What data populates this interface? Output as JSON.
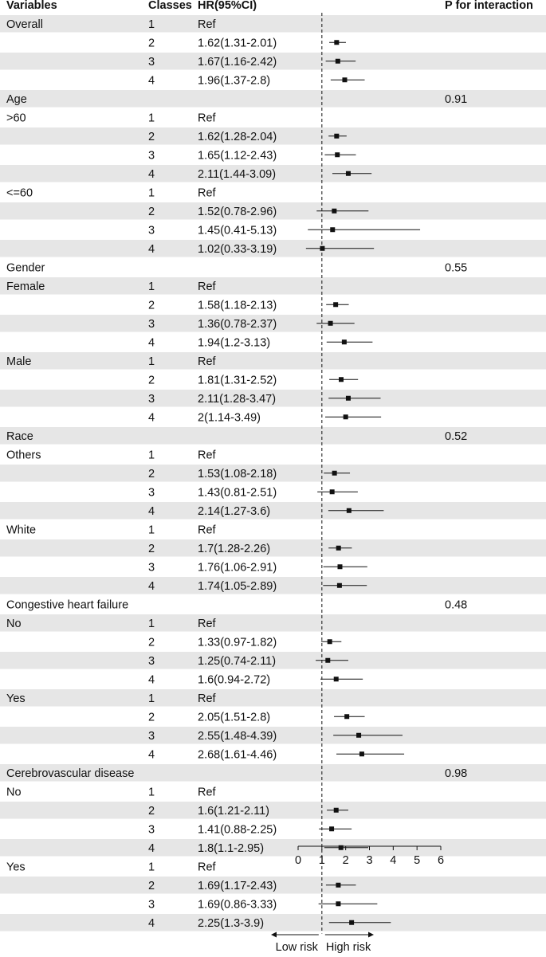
{
  "headers": {
    "variables": "Variables",
    "classes": "Classes",
    "hr": "HR(95%CI)",
    "p": "P for interaction"
  },
  "axis": {
    "ticks": [
      0,
      1,
      2,
      3,
      4,
      5,
      6
    ],
    "xlim": [
      0,
      6
    ],
    "reference": 1,
    "low_label": "Low risk",
    "high_label": "High risk"
  },
  "colors": {
    "band": "#e6e6e6",
    "ink": "#111111"
  },
  "chart_data": {
    "type": "forest",
    "rows": [
      {
        "variable": "Overall",
        "class": "1",
        "hr_text": "Ref",
        "p": "",
        "band": true
      },
      {
        "variable": "",
        "class": "2",
        "hr_text": "1.62(1.31-2.01)",
        "p": "",
        "band": false,
        "hr": 1.62,
        "lo": 1.31,
        "hi": 2.01
      },
      {
        "variable": "",
        "class": "3",
        "hr_text": "1.67(1.16-2.42)",
        "p": "",
        "band": true,
        "hr": 1.67,
        "lo": 1.16,
        "hi": 2.42
      },
      {
        "variable": "",
        "class": "4",
        "hr_text": "1.96(1.37-2.8)",
        "p": "",
        "band": false,
        "hr": 1.96,
        "lo": 1.37,
        "hi": 2.8
      },
      {
        "variable": "Age",
        "class": "",
        "hr_text": "",
        "p": "0.91",
        "band": true
      },
      {
        "variable": ">60",
        "class": "1",
        "hr_text": "Ref",
        "p": "",
        "band": false
      },
      {
        "variable": "",
        "class": "2",
        "hr_text": "1.62(1.28-2.04)",
        "p": "",
        "band": true,
        "hr": 1.62,
        "lo": 1.28,
        "hi": 2.04
      },
      {
        "variable": "",
        "class": "3",
        "hr_text": "1.65(1.12-2.43)",
        "p": "",
        "band": false,
        "hr": 1.65,
        "lo": 1.12,
        "hi": 2.43
      },
      {
        "variable": "",
        "class": "4",
        "hr_text": "2.11(1.44-3.09)",
        "p": "",
        "band": true,
        "hr": 2.11,
        "lo": 1.44,
        "hi": 3.09
      },
      {
        "variable": "<=60",
        "class": "1",
        "hr_text": "Ref",
        "p": "",
        "band": false
      },
      {
        "variable": "",
        "class": "2",
        "hr_text": "1.52(0.78-2.96)",
        "p": "",
        "band": true,
        "hr": 1.52,
        "lo": 0.78,
        "hi": 2.96
      },
      {
        "variable": "",
        "class": "3",
        "hr_text": "1.45(0.41-5.13)",
        "p": "",
        "band": false,
        "hr": 1.45,
        "lo": 0.41,
        "hi": 5.13
      },
      {
        "variable": "",
        "class": "4",
        "hr_text": "1.02(0.33-3.19)",
        "p": "",
        "band": true,
        "hr": 1.02,
        "lo": 0.33,
        "hi": 3.19
      },
      {
        "variable": "Gender",
        "class": "",
        "hr_text": "",
        "p": "0.55",
        "band": false
      },
      {
        "variable": "Female",
        "class": "1",
        "hr_text": "Ref",
        "p": "",
        "band": true
      },
      {
        "variable": "",
        "class": "2",
        "hr_text": "1.58(1.18-2.13)",
        "p": "",
        "band": false,
        "hr": 1.58,
        "lo": 1.18,
        "hi": 2.13
      },
      {
        "variable": "",
        "class": "3",
        "hr_text": "1.36(0.78-2.37)",
        "p": "",
        "band": true,
        "hr": 1.36,
        "lo": 0.78,
        "hi": 2.37
      },
      {
        "variable": "",
        "class": "4",
        "hr_text": "1.94(1.2-3.13)",
        "p": "",
        "band": false,
        "hr": 1.94,
        "lo": 1.2,
        "hi": 3.13
      },
      {
        "variable": "Male",
        "class": "1",
        "hr_text": "Ref",
        "p": "",
        "band": true
      },
      {
        "variable": "",
        "class": "2",
        "hr_text": "1.81(1.31-2.52)",
        "p": "",
        "band": false,
        "hr": 1.81,
        "lo": 1.31,
        "hi": 2.52
      },
      {
        "variable": "",
        "class": "3",
        "hr_text": "2.11(1.28-3.47)",
        "p": "",
        "band": true,
        "hr": 2.11,
        "lo": 1.28,
        "hi": 3.47
      },
      {
        "variable": "",
        "class": "4",
        "hr_text": "2(1.14-3.49)",
        "p": "",
        "band": false,
        "hr": 2.0,
        "lo": 1.14,
        "hi": 3.49
      },
      {
        "variable": "Race",
        "class": "",
        "hr_text": "",
        "p": "0.52",
        "band": true
      },
      {
        "variable": "Others",
        "class": "1",
        "hr_text": "Ref",
        "p": "",
        "band": false
      },
      {
        "variable": "",
        "class": "2",
        "hr_text": "1.53(1.08-2.18)",
        "p": "",
        "band": true,
        "hr": 1.53,
        "lo": 1.08,
        "hi": 2.18
      },
      {
        "variable": "",
        "class": "3",
        "hr_text": "1.43(0.81-2.51)",
        "p": "",
        "band": false,
        "hr": 1.43,
        "lo": 0.81,
        "hi": 2.51
      },
      {
        "variable": "",
        "class": "4",
        "hr_text": "2.14(1.27-3.6)",
        "p": "",
        "band": true,
        "hr": 2.14,
        "lo": 1.27,
        "hi": 3.6
      },
      {
        "variable": "White",
        "class": "1",
        "hr_text": "Ref",
        "p": "",
        "band": false
      },
      {
        "variable": "",
        "class": "2",
        "hr_text": "1.7(1.28-2.26)",
        "p": "",
        "band": true,
        "hr": 1.7,
        "lo": 1.28,
        "hi": 2.26
      },
      {
        "variable": "",
        "class": "3",
        "hr_text": "1.76(1.06-2.91)",
        "p": "",
        "band": false,
        "hr": 1.76,
        "lo": 1.06,
        "hi": 2.91
      },
      {
        "variable": "",
        "class": "4",
        "hr_text": "1.74(1.05-2.89)",
        "p": "",
        "band": true,
        "hr": 1.74,
        "lo": 1.05,
        "hi": 2.89
      },
      {
        "variable": "Congestive heart failure",
        "class": "",
        "hr_text": "",
        "p": "0.48",
        "band": false
      },
      {
        "variable": "No",
        "class": "1",
        "hr_text": "Ref",
        "p": "",
        "band": true
      },
      {
        "variable": "",
        "class": "2",
        "hr_text": "1.33(0.97-1.82)",
        "p": "",
        "band": false,
        "hr": 1.33,
        "lo": 0.97,
        "hi": 1.82
      },
      {
        "variable": "",
        "class": "3",
        "hr_text": "1.25(0.74-2.11)",
        "p": "",
        "band": true,
        "hr": 1.25,
        "lo": 0.74,
        "hi": 2.11
      },
      {
        "variable": "",
        "class": "4",
        "hr_text": "1.6(0.94-2.72)",
        "p": "",
        "band": false,
        "hr": 1.6,
        "lo": 0.94,
        "hi": 2.72
      },
      {
        "variable": "Yes",
        "class": "1",
        "hr_text": "Ref",
        "p": "",
        "band": true
      },
      {
        "variable": "",
        "class": "2",
        "hr_text": "2.05(1.51-2.8)",
        "p": "",
        "band": false,
        "hr": 2.05,
        "lo": 1.51,
        "hi": 2.8
      },
      {
        "variable": "",
        "class": "3",
        "hr_text": "2.55(1.48-4.39)",
        "p": "",
        "band": true,
        "hr": 2.55,
        "lo": 1.48,
        "hi": 4.39
      },
      {
        "variable": "",
        "class": "4",
        "hr_text": "2.68(1.61-4.46)",
        "p": "",
        "band": false,
        "hr": 2.68,
        "lo": 1.61,
        "hi": 4.46
      },
      {
        "variable": "Cerebrovascular disease",
        "class": "",
        "hr_text": "",
        "p": "0.98",
        "band": true
      },
      {
        "variable": "No",
        "class": "1",
        "hr_text": "Ref",
        "p": "",
        "band": false
      },
      {
        "variable": "",
        "class": "2",
        "hr_text": "1.6(1.21-2.11)",
        "p": "",
        "band": true,
        "hr": 1.6,
        "lo": 1.21,
        "hi": 2.11
      },
      {
        "variable": "",
        "class": "3",
        "hr_text": "1.41(0.88-2.25)",
        "p": "",
        "band": false,
        "hr": 1.41,
        "lo": 0.88,
        "hi": 2.25
      },
      {
        "variable": "",
        "class": "4",
        "hr_text": "1.8(1.1-2.95)",
        "p": "",
        "band": true,
        "hr": 1.8,
        "lo": 1.1,
        "hi": 2.95
      },
      {
        "variable": "Yes",
        "class": "1",
        "hr_text": "Ref",
        "p": "",
        "band": false
      },
      {
        "variable": "",
        "class": "2",
        "hr_text": "1.69(1.17-2.43)",
        "p": "",
        "band": true,
        "hr": 1.69,
        "lo": 1.17,
        "hi": 2.43
      },
      {
        "variable": "",
        "class": "3",
        "hr_text": "1.69(0.86-3.33)",
        "p": "",
        "band": false,
        "hr": 1.69,
        "lo": 0.86,
        "hi": 3.33
      },
      {
        "variable": "",
        "class": "4",
        "hr_text": "2.25(1.3-3.9)",
        "p": "",
        "band": true,
        "hr": 2.25,
        "lo": 1.3,
        "hi": 3.9
      }
    ]
  }
}
